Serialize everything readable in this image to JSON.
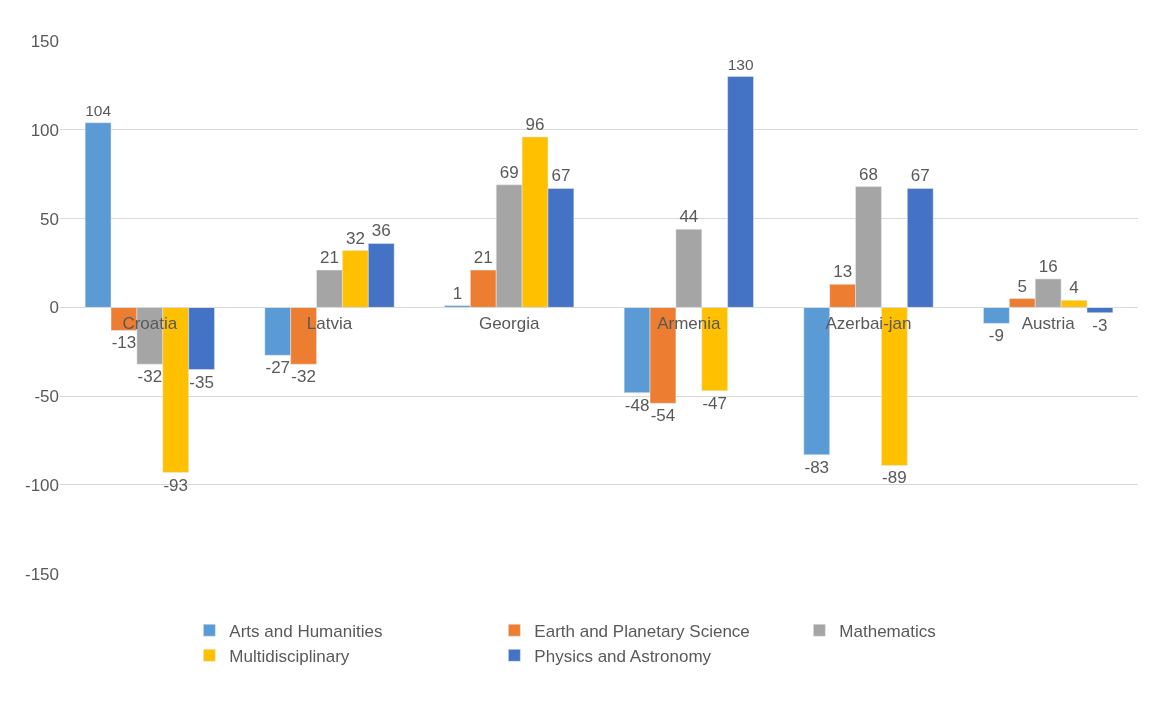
{
  "chart_data": {
    "type": "bar",
    "categories": [
      "Croatia",
      "Latvia",
      "Georgia",
      "Armenia",
      "Azerbai-jan",
      "Austria"
    ],
    "series": [
      {
        "name": "Arts and Humanities",
        "color": "#5b9bd5",
        "values": [
          104,
          -27,
          1,
          -48,
          -83,
          -9
        ]
      },
      {
        "name": "Earth and Planetary Science",
        "color": "#ed7d31",
        "values": [
          -13,
          -32,
          21,
          -54,
          13,
          5
        ]
      },
      {
        "name": "Mathematics",
        "color": "#a5a5a5",
        "values": [
          -32,
          21,
          69,
          44,
          68,
          16
        ]
      },
      {
        "name": "Multidisciplinary",
        "color": "#ffc000",
        "values": [
          -93,
          32,
          96,
          -47,
          -89,
          4
        ]
      },
      {
        "name": "Physics and Astronomy",
        "color": "#4472c4",
        "values": [
          -35,
          36,
          67,
          130,
          67,
          -3
        ]
      }
    ],
    "ylim": [
      -150,
      150
    ],
    "yticks": [
      -150,
      -100,
      -50,
      0,
      50,
      100,
      150
    ],
    "grid": "y",
    "legend": "bottom",
    "data_labels": true
  }
}
